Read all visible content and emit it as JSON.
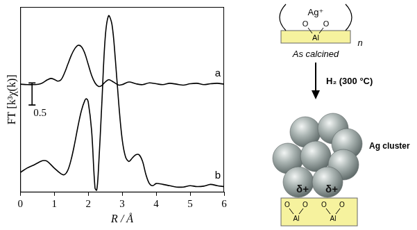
{
  "chart_data": {
    "type": "line",
    "x_label": "R / Å",
    "y_label": "FT [k³χ(k)]",
    "xlim": [
      0,
      6
    ],
    "xticks": [
      0,
      1,
      2,
      3,
      4,
      5,
      6
    ],
    "ylim": [
      0,
      4.2
    ],
    "tick_labels": "x",
    "grid": false,
    "scale_bar": 0.5,
    "series": [
      {
        "name": "a",
        "color": "#000000",
        "x": [
          0,
          0.2,
          0.4,
          0.6,
          0.8,
          0.9,
          1.0,
          1.1,
          1.2,
          1.3,
          1.4,
          1.5,
          1.6,
          1.7,
          1.8,
          1.9,
          2.0,
          2.1,
          2.2,
          2.3,
          2.4,
          2.5,
          2.6,
          2.7,
          2.8,
          2.9,
          3.0,
          3.2,
          3.4,
          3.6,
          3.8,
          4.0,
          4.2,
          4.4,
          4.6,
          4.8,
          5.0,
          5.2,
          5.4,
          5.6,
          5.8,
          6.0
        ],
        "values": [
          2.45,
          2.44,
          2.44,
          2.46,
          2.55,
          2.58,
          2.56,
          2.52,
          2.55,
          2.7,
          2.9,
          3.1,
          3.25,
          3.33,
          3.3,
          3.15,
          2.9,
          2.65,
          2.48,
          2.4,
          2.42,
          2.5,
          2.55,
          2.52,
          2.47,
          2.43,
          2.44,
          2.5,
          2.46,
          2.44,
          2.48,
          2.46,
          2.44,
          2.47,
          2.45,
          2.43,
          2.46,
          2.47,
          2.44,
          2.46,
          2.47,
          2.45
        ]
      },
      {
        "name": "b",
        "color": "#000000",
        "x": [
          0,
          0.2,
          0.4,
          0.6,
          0.7,
          0.8,
          1.0,
          1.2,
          1.3,
          1.4,
          1.5,
          1.6,
          1.7,
          1.8,
          1.9,
          1.95,
          2.0,
          2.1,
          2.2,
          2.25,
          2.3,
          2.4,
          2.5,
          2.6,
          2.7,
          2.8,
          2.9,
          3.0,
          3.1,
          3.2,
          3.3,
          3.4,
          3.5,
          3.6,
          3.7,
          3.8,
          3.9,
          4.0,
          4.2,
          4.4,
          4.6,
          4.8,
          5.0,
          5.2,
          5.4,
          5.6,
          5.8,
          6.0
        ],
        "values": [
          0.45,
          0.55,
          0.62,
          0.7,
          0.72,
          0.7,
          0.55,
          0.42,
          0.4,
          0.5,
          0.75,
          1.1,
          1.5,
          1.85,
          2.08,
          2.12,
          2.05,
          1.4,
          0.1,
          0.05,
          0.5,
          2.0,
          3.5,
          4.0,
          3.8,
          3.0,
          2.0,
          1.2,
          0.8,
          0.7,
          0.78,
          0.85,
          0.85,
          0.7,
          0.4,
          0.2,
          0.15,
          0.2,
          0.18,
          0.15,
          0.12,
          0.12,
          0.15,
          0.13,
          0.14,
          0.18,
          0.15,
          0.13
        ]
      }
    ]
  },
  "diagram": {
    "top": {
      "ion": "Ag⁺",
      "ligands": [
        "O",
        "O"
      ],
      "center": "Al",
      "repeat": "n",
      "caption": "As calcined"
    },
    "step": {
      "label": "H₂ (300 °C)"
    },
    "bottom": {
      "cluster_label": "Ag cluster",
      "charges": [
        "δ+",
        "δ+"
      ],
      "sites": [
        {
          "ligands": [
            "O",
            "O"
          ],
          "center": "Al"
        },
        {
          "ligands": [
            "O",
            "O"
          ],
          "center": "Al"
        }
      ]
    }
  }
}
